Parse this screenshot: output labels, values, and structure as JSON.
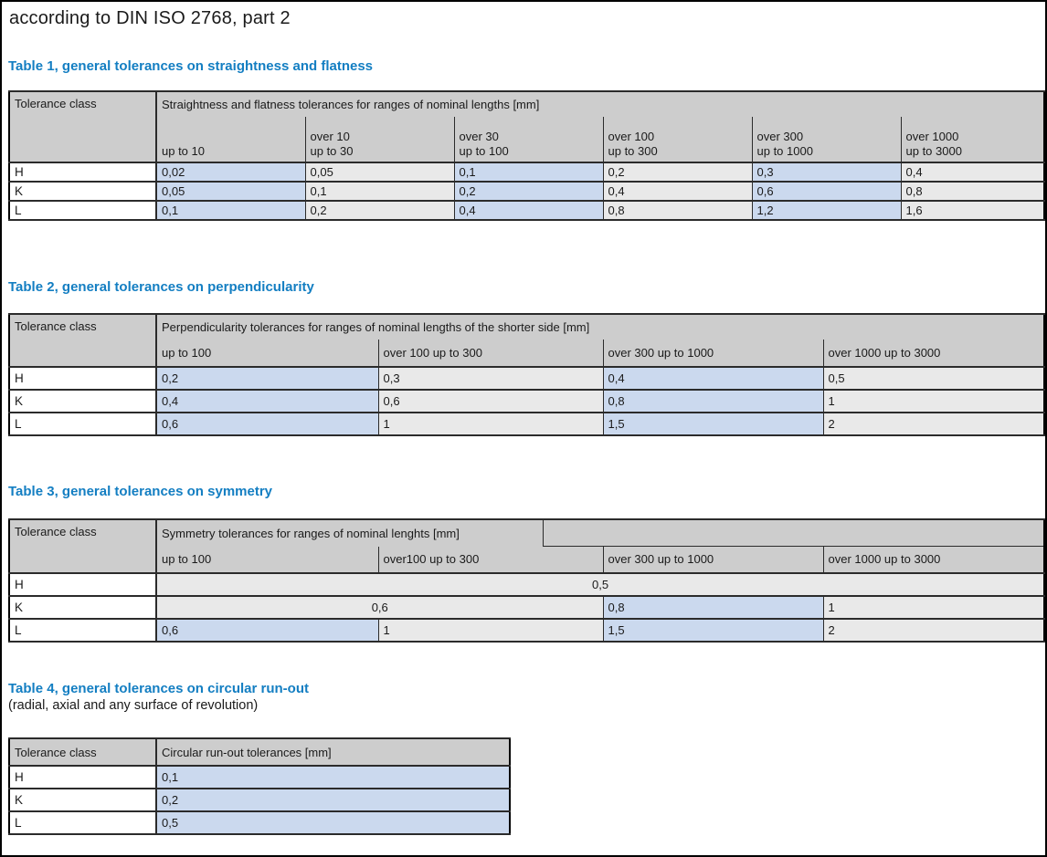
{
  "page": {
    "title": "according to DIN ISO 2768, part 2"
  },
  "colors": {
    "accent_blue": "#137ec2",
    "cell_blue": "#cbd9ee",
    "cell_gray": "#e9e9e9",
    "header_gray": "#cdcdcd",
    "border": "#2b2b2b"
  },
  "tables": [
    {
      "name": "straightness-flatness",
      "title": "Table 1, general tolerances on straightness and flatness",
      "subtitle": "",
      "corner_header": "Tolerance class",
      "span_header": "Straightness and flatness tolerances for ranges of nominal lengths [mm]",
      "col_headers": [
        "up to 10",
        "over 10\nup to 30",
        "over 30\nup to 100",
        "over 100\nup to 300",
        "over 300\nup to 1000",
        "over 1000\nup to 3000"
      ],
      "rows": [
        {
          "label": "H",
          "cells": [
            {
              "t": "0,02",
              "bg": "blue"
            },
            {
              "t": "0,05",
              "bg": "gray"
            },
            {
              "t": "0,1",
              "bg": "blue"
            },
            {
              "t": "0,2",
              "bg": "gray"
            },
            {
              "t": "0,3",
              "bg": "blue"
            },
            {
              "t": "0,4",
              "bg": "gray"
            }
          ]
        },
        {
          "label": "K",
          "cells": [
            {
              "t": "0,05",
              "bg": "blue"
            },
            {
              "t": "0,1",
              "bg": "gray"
            },
            {
              "t": "0,2",
              "bg": "blue"
            },
            {
              "t": "0,4",
              "bg": "gray"
            },
            {
              "t": "0,6",
              "bg": "blue"
            },
            {
              "t": "0,8",
              "bg": "gray"
            }
          ]
        },
        {
          "label": "L",
          "cells": [
            {
              "t": "0,1",
              "bg": "blue"
            },
            {
              "t": "0,2",
              "bg": "gray"
            },
            {
              "t": "0,4",
              "bg": "blue"
            },
            {
              "t": "0,8",
              "bg": "gray"
            },
            {
              "t": "1,2",
              "bg": "blue"
            },
            {
              "t": "1,6",
              "bg": "gray"
            }
          ]
        }
      ]
    },
    {
      "name": "perpendicularity",
      "title": "Table 2, general tolerances on perpendicularity",
      "subtitle": "",
      "corner_header": "Tolerance class",
      "span_header": "Perpendicularity tolerances for ranges of nominal lengths of the shorter side [mm]",
      "col_headers": [
        "up to 100",
        "over 100 up to 300",
        "over 300 up to 1000",
        "over 1000 up to 3000"
      ],
      "rows": [
        {
          "label": "H",
          "cells": [
            {
              "t": "0,2",
              "bg": "blue"
            },
            {
              "t": "0,3",
              "bg": "gray"
            },
            {
              "t": "0,4",
              "bg": "blue"
            },
            {
              "t": "0,5",
              "bg": "gray"
            }
          ]
        },
        {
          "label": "K",
          "cells": [
            {
              "t": "0,4",
              "bg": "blue"
            },
            {
              "t": "0,6",
              "bg": "gray"
            },
            {
              "t": "0,8",
              "bg": "blue"
            },
            {
              "t": "1",
              "bg": "gray"
            }
          ]
        },
        {
          "label": "L",
          "cells": [
            {
              "t": "0,6",
              "bg": "blue"
            },
            {
              "t": "1",
              "bg": "gray"
            },
            {
              "t": "1,5",
              "bg": "blue"
            },
            {
              "t": "2",
              "bg": "gray"
            }
          ]
        }
      ]
    },
    {
      "name": "symmetry",
      "title": "Table 3, general tolerances on symmetry",
      "subtitle": "",
      "corner_header": "Tolerance class",
      "span_header": "Symmetry tolerances for ranges of nominal lenghts [mm]",
      "col_headers": [
        "up to 100",
        "over100 up to 300",
        "over 300 up to 1000",
        "over 1000 up to 3000"
      ],
      "rows": [
        {
          "label": "H",
          "cells": [
            {
              "t": "0,5",
              "bg": "gray",
              "span": 4,
              "align": "center"
            }
          ]
        },
        {
          "label": "K",
          "cells": [
            {
              "t": "0,6",
              "bg": "gray",
              "span": 2,
              "align": "center"
            },
            {
              "t": "0,8",
              "bg": "blue"
            },
            {
              "t": "1",
              "bg": "gray"
            }
          ]
        },
        {
          "label": "L",
          "cells": [
            {
              "t": "0,6",
              "bg": "blue"
            },
            {
              "t": "1",
              "bg": "gray"
            },
            {
              "t": "1,5",
              "bg": "blue"
            },
            {
              "t": "2",
              "bg": "gray"
            }
          ]
        }
      ]
    },
    {
      "name": "circular-run-out",
      "title": "Table 4, general tolerances on circular run-out",
      "subtitle": "(radial, axial and any surface of revolution)",
      "corner_header": "Tolerance class",
      "span_header": "Circular run-out tolerances [mm]",
      "col_headers": [],
      "rows": [
        {
          "label": "H",
          "cells": [
            {
              "t": "0,1",
              "bg": "blue"
            }
          ]
        },
        {
          "label": "K",
          "cells": [
            {
              "t": "0,2",
              "bg": "blue"
            }
          ]
        },
        {
          "label": "L",
          "cells": [
            {
              "t": "0,5",
              "bg": "blue"
            }
          ]
        }
      ]
    }
  ]
}
